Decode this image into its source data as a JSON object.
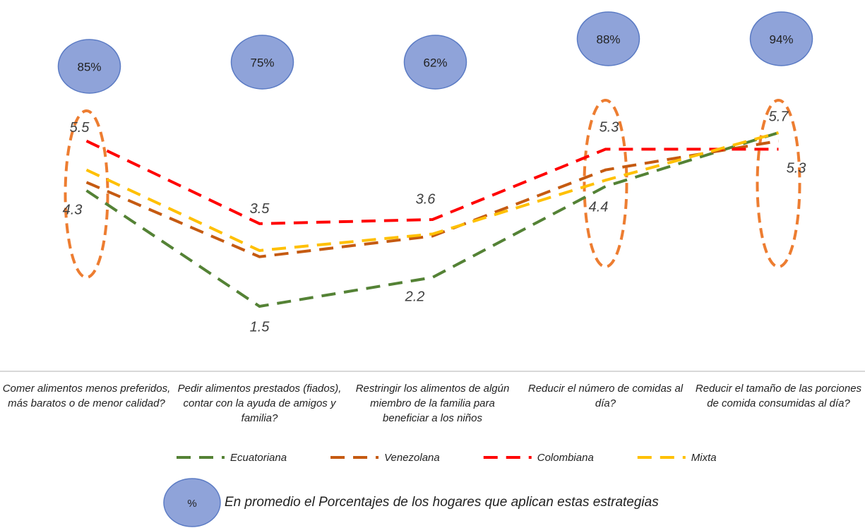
{
  "chart_data": {
    "type": "line",
    "categories": [
      "Comer alimentos menos preferidos, más baratos o de menor calidad?",
      "Pedir alimentos prestados (fiados), contar con la ayuda de amigos y familia?",
      "Restringir los alimentos de algún miembro de la familia para beneficiar a los niños",
      "Reducir el número de comidas al día?",
      "Reducir el tamaño de las porciones de comida consumidas al día?"
    ],
    "series": [
      {
        "name": "Ecuatoriana",
        "color": "#548235",
        "values": [
          4.3,
          1.5,
          2.2,
          4.4,
          5.7
        ]
      },
      {
        "name": "Venezolana",
        "color": "#c55a11",
        "values": [
          4.5,
          2.7,
          3.2,
          4.8,
          5.5
        ]
      },
      {
        "name": "Colombiana",
        "color": "#ff0000",
        "values": [
          5.5,
          3.5,
          3.6,
          5.3,
          5.3
        ]
      },
      {
        "name": "Mixta",
        "color": "#ffc000",
        "values": [
          4.8,
          2.85,
          3.25,
          4.55,
          5.7
        ]
      }
    ],
    "labeled_series": [
      0,
      2
    ],
    "bubbles": {
      "values": [
        85,
        75,
        62,
        88,
        94
      ],
      "value_labels": [
        "85%",
        "75%",
        "62%",
        "88%",
        "94%"
      ]
    },
    "footnote": {
      "symbol": "%",
      "text": "En promedio el Porcentajes de los hogares que aplican estas estrategias"
    }
  }
}
